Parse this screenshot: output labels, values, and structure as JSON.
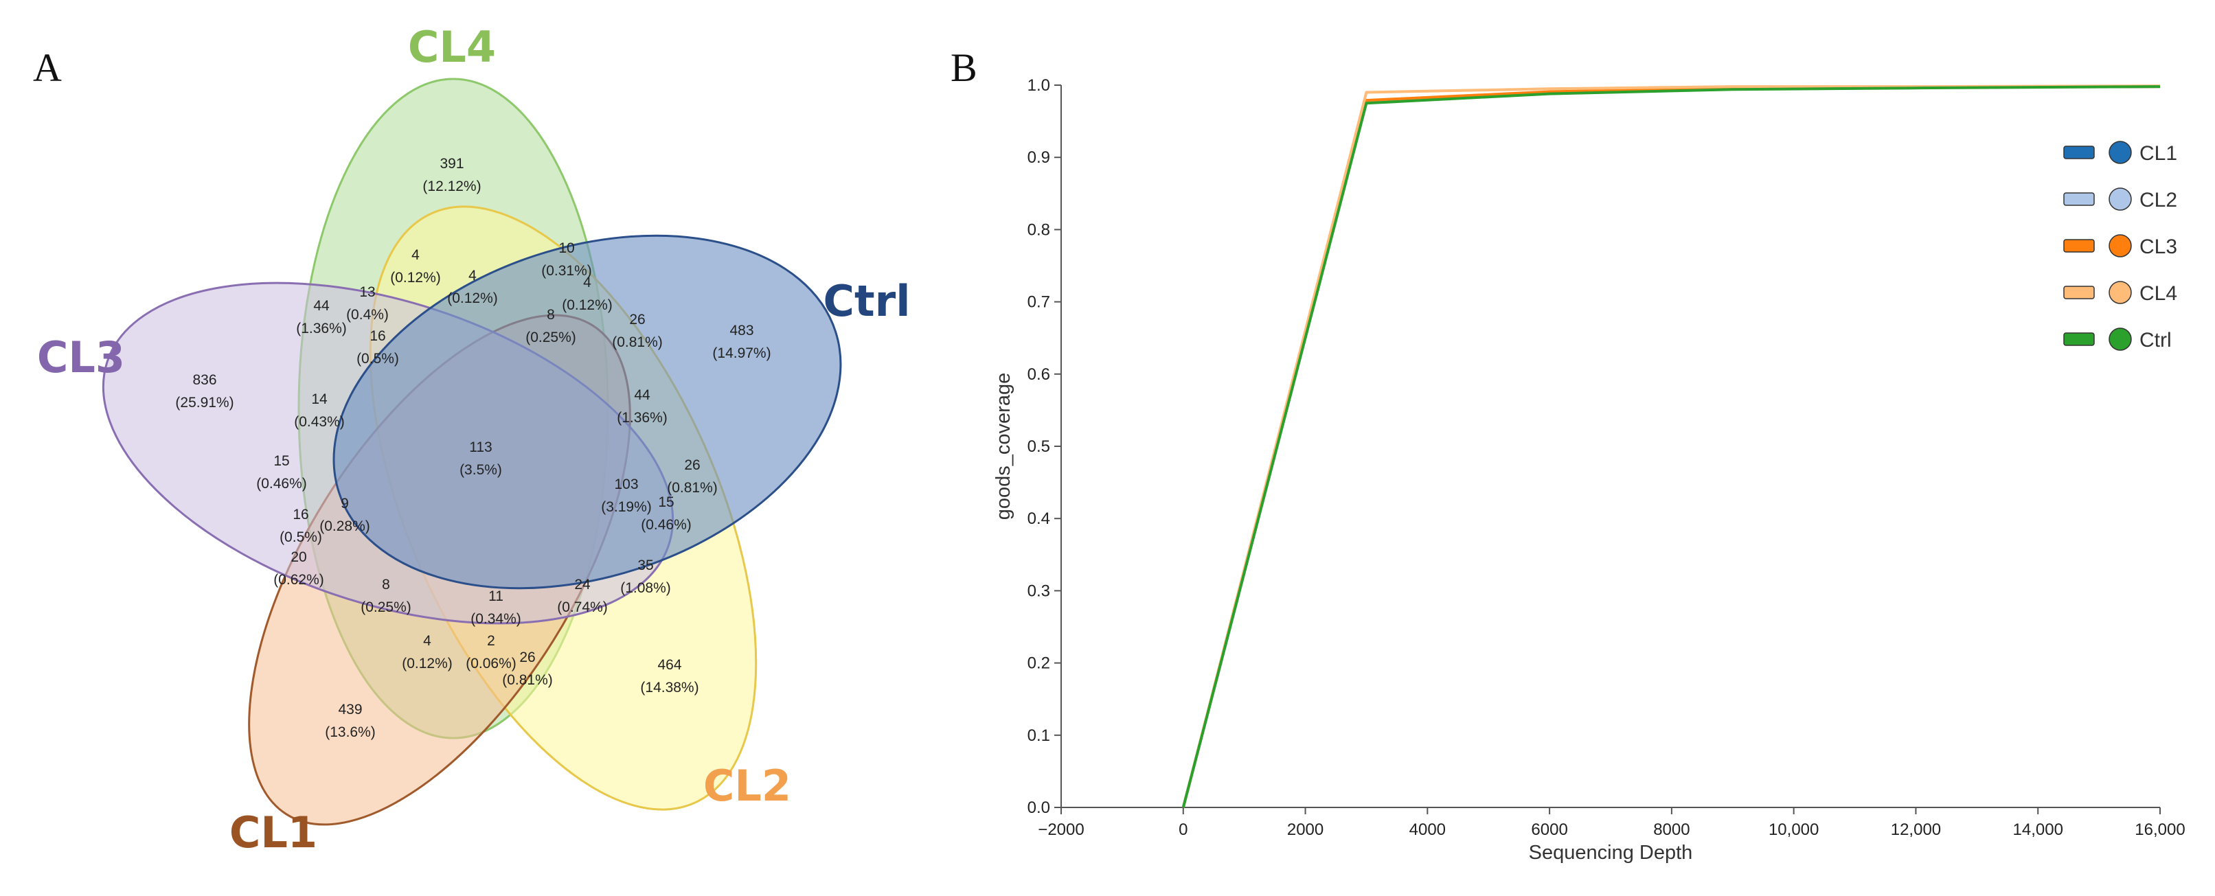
{
  "chart_data": [
    {
      "type": "venn",
      "panel_label": "A",
      "sets": [
        {
          "name": "CL4",
          "color": "#8dc96b",
          "fill": "#b9e0a5",
          "label_color": "#8bbf5a"
        },
        {
          "name": "Ctrl",
          "color": "#2b4f8a",
          "fill": "#6f93c4",
          "label_color": "#23467f"
        },
        {
          "name": "CL3",
          "color": "#8a6eb2",
          "fill": "#cbbfe0",
          "label_color": "#8466ad"
        },
        {
          "name": "CL1",
          "color": "#a05a2c",
          "fill": "#f6bf95",
          "label_color": "#9a5323"
        },
        {
          "name": "CL2",
          "color": "#e8c84a",
          "fill": "#fff79c",
          "label_color": "#f2a04e"
        }
      ],
      "regions": [
        {
          "count": "391",
          "pct": "(12.12%)"
        },
        {
          "count": "483",
          "pct": "(14.97%)"
        },
        {
          "count": "836",
          "pct": "(25.91%)"
        },
        {
          "count": "439",
          "pct": "(13.6%)"
        },
        {
          "count": "464",
          "pct": "(14.38%)"
        },
        {
          "count": "4",
          "pct": "(0.12%)"
        },
        {
          "count": "10",
          "pct": "(0.31%)"
        },
        {
          "count": "4",
          "pct": "(0.12%)"
        },
        {
          "count": "4",
          "pct": "(0.12%)"
        },
        {
          "count": "44",
          "pct": "(1.36%)"
        },
        {
          "count": "13",
          "pct": "(0.4%)"
        },
        {
          "count": "16",
          "pct": "(0.5%)"
        },
        {
          "count": "8",
          "pct": "(0.25%)"
        },
        {
          "count": "26",
          "pct": "(0.81%)"
        },
        {
          "count": "14",
          "pct": "(0.43%)"
        },
        {
          "count": "44",
          "pct": "(1.36%)"
        },
        {
          "count": "113",
          "pct": "(3.5%)"
        },
        {
          "count": "15",
          "pct": "(0.46%)"
        },
        {
          "count": "26",
          "pct": "(0.81%)"
        },
        {
          "count": "103",
          "pct": "(3.19%)"
        },
        {
          "count": "9",
          "pct": "(0.28%)"
        },
        {
          "count": "16",
          "pct": "(0.5%)"
        },
        {
          "count": "15",
          "pct": "(0.46%)"
        },
        {
          "count": "20",
          "pct": "(0.62%)"
        },
        {
          "count": "35",
          "pct": "(1.08%)"
        },
        {
          "count": "8",
          "pct": "(0.25%)"
        },
        {
          "count": "24",
          "pct": "(0.74%)"
        },
        {
          "count": "11",
          "pct": "(0.34%)"
        },
        {
          "count": "4",
          "pct": "(0.12%)"
        },
        {
          "count": "2",
          "pct": "(0.06%)"
        },
        {
          "count": "26",
          "pct": "(0.81%)"
        }
      ]
    },
    {
      "type": "line",
      "panel_label": "B",
      "xlabel": "Sequencing Depth",
      "ylabel": "goods_coverage",
      "xlim": [
        -2000,
        16000
      ],
      "ylim": [
        0,
        1
      ],
      "xticks": [
        -2000,
        0,
        2000,
        4000,
        6000,
        8000,
        10000,
        12000,
        14000,
        16000
      ],
      "xtick_labels": [
        "−2000",
        "0",
        "2000",
        "4000",
        "6000",
        "8000",
        "10,000",
        "12,000",
        "14,000",
        "16,000"
      ],
      "yticks": [
        0,
        0.1,
        0.2,
        0.3,
        0.4,
        0.5,
        0.6,
        0.7,
        0.8,
        0.9,
        1
      ],
      "ytick_labels": [
        "0.0",
        "0.1",
        "0.2",
        "0.3",
        "0.4",
        "0.5",
        "0.6",
        "0.7",
        "0.8",
        "0.9",
        "1.0"
      ],
      "legend_position": "top-right",
      "series": [
        {
          "name": "CL1",
          "color": "#1f6fb5",
          "x": [
            0,
            3000,
            6000,
            9000,
            12000,
            16000
          ],
          "y": [
            0,
            0.976,
            0.99,
            0.995,
            0.997,
            0.998
          ]
        },
        {
          "name": "CL2",
          "color": "#aec7e8",
          "x": [
            0,
            3000,
            6000,
            9000,
            12000,
            16000
          ],
          "y": [
            0,
            0.977,
            0.99,
            0.995,
            0.997,
            0.998
          ]
        },
        {
          "name": "CL3",
          "color": "#ff7f0e",
          "x": [
            0,
            3000,
            6000,
            9000,
            12000,
            16000
          ],
          "y": [
            0,
            0.979,
            0.991,
            0.996,
            0.997,
            0.998
          ]
        },
        {
          "name": "CL4",
          "color": "#ffbb78",
          "x": [
            0,
            3000,
            6000,
            9000,
            12000,
            16000
          ],
          "y": [
            0,
            0.99,
            0.995,
            0.998,
            0.998,
            0.999
          ]
        },
        {
          "name": "Ctrl",
          "color": "#2ca02c",
          "x": [
            0,
            3000,
            6000,
            9000,
            12000,
            16000
          ],
          "y": [
            0,
            0.975,
            0.988,
            0.994,
            0.996,
            0.998
          ]
        }
      ]
    }
  ]
}
